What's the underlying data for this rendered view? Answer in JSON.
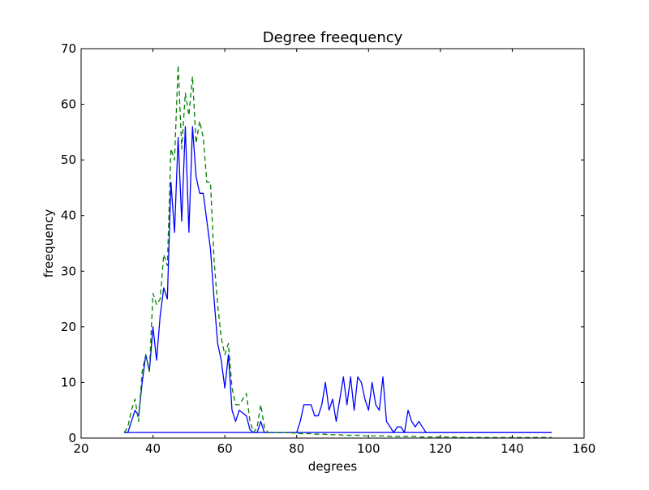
{
  "chart_data": {
    "type": "line",
    "title": "Degree freequency",
    "xlabel": "degrees",
    "ylabel": "freequency",
    "xlim": [
      20,
      160
    ],
    "ylim": [
      0,
      70
    ],
    "xticks": [
      20,
      40,
      60,
      80,
      100,
      120,
      140,
      160
    ],
    "yticks": [
      0,
      10,
      20,
      30,
      40,
      50,
      60,
      70
    ],
    "grid": false,
    "legend": "none",
    "series": [
      {
        "style": "solid",
        "color": "#0000ff",
        "x": [
          32,
          33,
          34,
          35,
          36,
          37,
          38,
          39,
          40,
          41,
          42,
          43,
          44,
          45,
          46,
          47,
          48,
          49,
          50,
          51,
          52,
          53,
          54,
          55,
          56,
          57,
          58,
          59,
          60,
          61,
          62,
          63,
          64,
          65,
          66,
          67,
          68,
          69,
          70,
          71,
          72,
          73,
          74,
          75,
          76,
          77,
          78,
          79,
          80,
          81,
          82,
          83,
          84,
          85,
          86,
          87,
          88,
          89,
          90,
          91,
          92,
          93,
          94,
          95,
          96,
          97,
          98,
          99,
          100,
          101,
          102,
          103,
          104,
          105,
          106,
          107,
          108,
          109,
          110,
          111,
          112,
          113,
          114,
          115,
          116,
          117,
          118,
          119,
          120,
          121,
          122,
          123,
          124,
          125,
          126,
          127,
          128,
          129,
          130,
          131,
          132,
          133,
          134,
          135,
          136,
          137,
          138,
          139,
          140,
          141,
          142,
          143,
          144,
          145,
          146,
          147,
          148,
          149,
          150,
          151
        ],
        "y": [
          1,
          1,
          3,
          5,
          4,
          10,
          15,
          12,
          20,
          14,
          22,
          27,
          25,
          46,
          37,
          54,
          39,
          56,
          37,
          56,
          47,
          44,
          44,
          39,
          34,
          25,
          17,
          14,
          9,
          15,
          5,
          3,
          5,
          4.5,
          4,
          1.5,
          1,
          1,
          3,
          1,
          1,
          1,
          1,
          1,
          1,
          1,
          1,
          1,
          1,
          3,
          6,
          6,
          6,
          4,
          4,
          6,
          10,
          5,
          7,
          3,
          7,
          11,
          6,
          11,
          5,
          11,
          10,
          7,
          5,
          10,
          6,
          5,
          11,
          3,
          2,
          1,
          2,
          2,
          1,
          5,
          3,
          2,
          3,
          2,
          1,
          1,
          1,
          1,
          1,
          1,
          1,
          1,
          1,
          1,
          1,
          1,
          1,
          1,
          1,
          1,
          1,
          1,
          1,
          1,
          1,
          1,
          1,
          1,
          1,
          1,
          1,
          1,
          1,
          1,
          1,
          1,
          1,
          1,
          1,
          1
        ]
      },
      {
        "style": "solid",
        "color": "#0000ff",
        "x": [
          32,
          151
        ],
        "y": [
          1,
          1
        ]
      },
      {
        "style": "dashed",
        "color": "#008000",
        "x": [
          32,
          33,
          34,
          35,
          36,
          37,
          38,
          39,
          40,
          41,
          42,
          43,
          44,
          45,
          46,
          47,
          48,
          49,
          50,
          51,
          52,
          53,
          54,
          55,
          56,
          57,
          58,
          59,
          60,
          61,
          62,
          63,
          64,
          65,
          66,
          67,
          68,
          69,
          70,
          71,
          72,
          73,
          74,
          75,
          76,
          77,
          78,
          79,
          80,
          81,
          82,
          83,
          84,
          85,
          86,
          87,
          88,
          89,
          90,
          91,
          92,
          93,
          94,
          95,
          96,
          97,
          98,
          99,
          100,
          101,
          102,
          103,
          104,
          105,
          106,
          107,
          108,
          109,
          110,
          111,
          112,
          113,
          114,
          115,
          116,
          117,
          118,
          119,
          120,
          121,
          122,
          123,
          124,
          125,
          126,
          127,
          128,
          129,
          130,
          131,
          132,
          133,
          134,
          135,
          136,
          137,
          138,
          139,
          140,
          141,
          142,
          143,
          144,
          145,
          146,
          147,
          148,
          149,
          150,
          151
        ],
        "y": [
          1,
          2,
          5,
          7,
          3,
          12,
          15,
          12,
          26,
          24,
          25,
          33,
          31,
          52,
          50,
          67,
          52,
          62,
          58,
          65,
          53,
          57,
          54,
          46,
          46,
          32,
          24,
          18,
          15,
          17,
          9,
          6,
          6,
          7,
          8,
          3,
          1,
          2,
          6,
          2,
          1,
          1,
          1,
          1,
          1,
          1,
          1,
          0.9,
          0.9,
          0.8,
          0.8,
          0.8,
          0.8,
          0.7,
          0.7,
          0.7,
          0.7,
          0.6,
          0.6,
          0.6,
          0.6,
          0.5,
          0.5,
          0.5,
          0.5,
          0.5,
          0.5,
          0.4,
          0.4,
          0.4,
          0.4,
          0.4,
          0.4,
          0.4,
          0.3,
          0.3,
          0.3,
          0.3,
          0.3,
          0.3,
          0.3,
          0.3,
          0.2,
          0.2,
          0.2,
          0.2,
          0.2,
          0.2,
          0.2,
          0.2,
          0.2,
          0.2,
          0.2,
          0.1,
          0.1,
          0.1,
          0.1,
          0.1,
          0.1,
          0.1,
          0.1,
          0.1,
          0.1,
          0.1,
          0.1,
          0.1,
          0.1,
          0.1,
          0.1,
          0.1,
          0.1,
          0.1,
          0.1,
          0.1,
          0.1,
          0.1,
          0.1,
          0.1,
          0.1,
          0.1
        ]
      }
    ]
  }
}
